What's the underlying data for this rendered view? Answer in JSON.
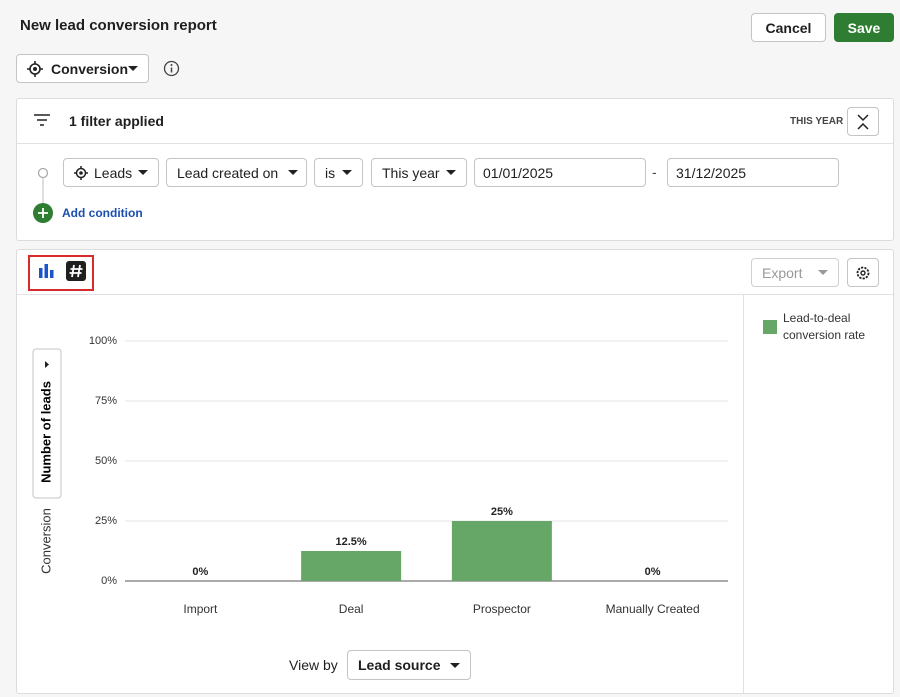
{
  "header": {
    "title": "New lead conversion report",
    "cancel": "Cancel",
    "save": "Save"
  },
  "report_type": "Conversion",
  "filter": {
    "summary": "1 filter applied",
    "period": "THIS YEAR",
    "condition": {
      "entity": "Leads",
      "field": "Lead created on",
      "operator": "is",
      "range": "This year",
      "start": "01/01/2025",
      "separator": "-",
      "end": "31/12/2025"
    },
    "add_condition": "Add condition"
  },
  "chart_panel": {
    "export": "Export",
    "metric_toggle": "Number of leads",
    "view_by_label": "View by",
    "view_by": "Lead source"
  },
  "chart_data": {
    "type": "bar",
    "y_label": "Conversion",
    "categories": [
      "Import",
      "Deal",
      "Prospector",
      "Manually Created"
    ],
    "series": [
      {
        "name": "Lead-to-deal conversion rate",
        "color": "#66a667",
        "values": [
          0,
          12.5,
          25,
          0
        ],
        "value_labels": [
          "0%",
          "12.5%",
          "25%",
          "0%"
        ]
      }
    ],
    "ylim": [
      0,
      100
    ],
    "yticks": [
      {
        "value": 0,
        "label": "0%"
      },
      {
        "value": 25,
        "label": "25%"
      },
      {
        "value": 50,
        "label": "50%"
      },
      {
        "value": 75,
        "label": "75%"
      },
      {
        "value": 100,
        "label": "100%"
      }
    ],
    "grid": true
  }
}
